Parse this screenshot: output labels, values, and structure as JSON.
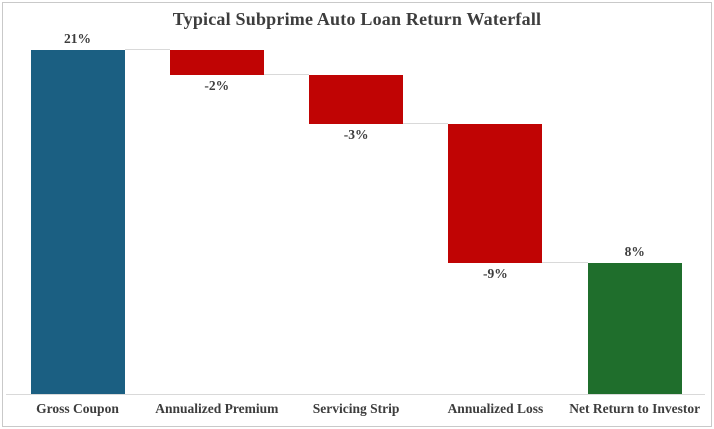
{
  "title": "Typical Subprime Auto Loan Return Waterfall",
  "chart_data": {
    "type": "waterfall",
    "title": "Typical Subprime Auto Loan Return Waterfall",
    "categories": [
      "Gross Coupon",
      "Annualized Premium",
      "Servicing Strip",
      "Annualized Loss",
      "Net Return to Investor"
    ],
    "values": [
      21,
      -2,
      -3,
      -9,
      8
    ],
    "value_labels": [
      "21%",
      "-2%",
      "-3%",
      "-9%",
      "8%"
    ],
    "bars": [
      {
        "category": "Gross Coupon",
        "value_label": "21%",
        "level_start": 0,
        "level_end": 21,
        "color": "#1b5f82",
        "label_side": "above"
      },
      {
        "category": "Annualized Premium",
        "value_label": "-2%",
        "level_start": 21,
        "level_end": 19.5,
        "color": "#c00404",
        "label_side": "below"
      },
      {
        "category": "Servicing Strip",
        "value_label": "-3%",
        "level_start": 19.5,
        "level_end": 16.5,
        "color": "#c00404",
        "label_side": "below"
      },
      {
        "category": "Annualized Loss",
        "value_label": "-9%",
        "level_start": 16.5,
        "level_end": 8,
        "color": "#c00404",
        "label_side": "below"
      },
      {
        "category": "Net Return to Investor",
        "value_label": "8%",
        "level_start": 8,
        "level_end": 0,
        "color": "#1f6e2c",
        "label_side": "above"
      }
    ],
    "ylim": [
      0,
      21.5
    ],
    "xlabel": "",
    "ylabel": "",
    "grid": false,
    "legend": false,
    "connectors": true,
    "colors": {
      "start_bar": "#1b5f82",
      "decrease_bar": "#c00404",
      "final_bar": "#1f6e2c",
      "text": "#3d3d3d",
      "connector_line": "#d9d9d9",
      "frame_border": "#c9c9c9",
      "background": "#ffffff"
    }
  }
}
